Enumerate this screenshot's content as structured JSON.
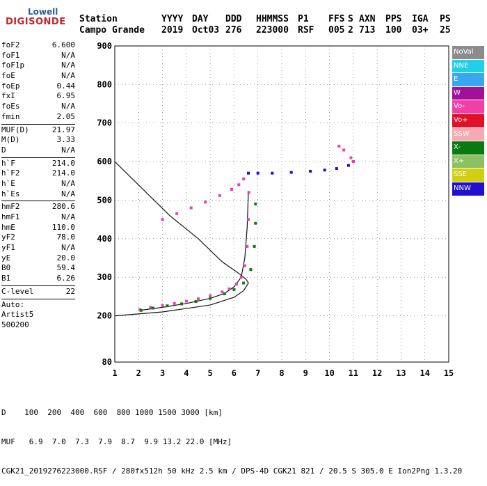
{
  "logo": {
    "top": "Lowell",
    "main": "DIGISONDE"
  },
  "header": {
    "row1": [
      "Station",
      "YYYY",
      "DAY",
      "DDD",
      "HHMMSS",
      "P1",
      "FFS",
      "S",
      "AXN",
      "PPS",
      "IGA",
      "PS"
    ],
    "row2": [
      "Campo Grande",
      "2019",
      "Oct03",
      "276",
      "223000",
      "RSF",
      "005",
      "2",
      "713",
      "100",
      "03+",
      "25"
    ]
  },
  "side_groups": [
    [
      [
        "foF2",
        "6.600"
      ],
      [
        "foF1",
        "N/A"
      ],
      [
        "foF1p",
        "N/A"
      ],
      [
        "foE",
        "N/A"
      ],
      [
        "foEp",
        "0.44"
      ],
      [
        "fxI",
        "6.95"
      ],
      [
        "foEs",
        "N/A"
      ],
      [
        "fmin",
        "2.05"
      ]
    ],
    [
      [
        "MUF(D)",
        "21.97"
      ],
      [
        "M(D)",
        "3.33"
      ],
      [
        "D",
        "N/A"
      ]
    ],
    [
      [
        "h`F",
        "214.0"
      ],
      [
        "h`F2",
        "214.0"
      ],
      [
        "h`E",
        "N/A"
      ],
      [
        "h`Es",
        "N/A"
      ]
    ],
    [
      [
        "hmF2",
        "280.6"
      ],
      [
        "hmF1",
        "N/A"
      ],
      [
        "hmE",
        "110.0"
      ],
      [
        "yF2",
        "78.0"
      ],
      [
        "yF1",
        "N/A"
      ],
      [
        "yE",
        "20.0"
      ],
      [
        "B0",
        "59.4"
      ],
      [
        "B1",
        "6.26"
      ]
    ],
    [
      [
        "C-level",
        "22"
      ]
    ],
    [
      [
        "Auto:",
        ""
      ],
      [
        "Artist5",
        ""
      ],
      [
        "500200",
        ""
      ]
    ]
  ],
  "bottom": {
    "line1": "D    100  200  400  600  800 1000 1500 3000 [km]",
    "line2": "MUF   6.9  7.0  7.3  7.9  8.7  9.9 13.2 22.0 [MHz]",
    "line3": "CGK21_2019276223000.RSF / 280fx512h 50 kHz 2.5 km / DPS-4D CGK21 821 / 20.5 S 305.0 E Ion2Png 1.3.20"
  },
  "legend": [
    {
      "label": "NoVal",
      "color": "#8c8c8c"
    },
    {
      "label": "NNE",
      "color": "#20d0e8"
    },
    {
      "label": "E",
      "color": "#3aa6f0"
    },
    {
      "label": "W",
      "color": "#a0109a"
    },
    {
      "label": "Vo-",
      "color": "#f040a8"
    },
    {
      "label": "Vo+",
      "color": "#e0102a"
    },
    {
      "label": "SSW",
      "color": "#f4aab0"
    },
    {
      "label": "X-",
      "color": "#0a7a10"
    },
    {
      "label": "X+",
      "color": "#8cc060"
    },
    {
      "label": "SSE",
      "color": "#d0d010"
    },
    {
      "label": "NNW",
      "color": "#2010d0"
    }
  ],
  "chart_data": {
    "type": "scatter",
    "xlabel": "",
    "ylabel": "",
    "xlim": [
      1,
      15
    ],
    "ylim": [
      80,
      900
    ],
    "xticks": [
      1,
      2,
      3,
      4,
      5,
      6,
      7,
      8,
      9,
      10,
      11,
      12,
      13,
      14,
      15
    ],
    "yticks": [
      80,
      200,
      300,
      400,
      500,
      600,
      700,
      800,
      900
    ],
    "series": [
      {
        "color": "#f040a8",
        "values": [
          [
            2.05,
            216
          ],
          [
            2.5,
            222
          ],
          [
            3,
            227
          ],
          [
            3.5,
            232
          ],
          [
            4,
            238
          ],
          [
            4.5,
            244
          ],
          [
            5,
            252
          ],
          [
            5.5,
            262
          ],
          [
            5.8,
            270
          ],
          [
            6.1,
            282
          ],
          [
            6.3,
            300
          ],
          [
            6.45,
            330
          ],
          [
            6.55,
            380
          ],
          [
            6.6,
            450
          ],
          [
            6.62,
            520
          ]
        ]
      },
      {
        "color": "#0a7a10",
        "values": [
          [
            2.1,
            214
          ],
          [
            2.6,
            220
          ],
          [
            3.2,
            226
          ],
          [
            3.8,
            231
          ],
          [
            4.4,
            237
          ],
          [
            5,
            245
          ],
          [
            5.6,
            257
          ],
          [
            6.0,
            268
          ],
          [
            6.4,
            285
          ],
          [
            6.7,
            320
          ],
          [
            6.85,
            380
          ],
          [
            6.9,
            440
          ],
          [
            6.9,
            490
          ]
        ]
      },
      {
        "color": "#f040a8",
        "values": [
          [
            3,
            450
          ],
          [
            3.6,
            465
          ],
          [
            4.2,
            480
          ],
          [
            4.8,
            495
          ],
          [
            5.4,
            512
          ],
          [
            5.9,
            528
          ],
          [
            6.2,
            540
          ],
          [
            6.4,
            555
          ]
        ]
      },
      {
        "color": "#2010d0",
        "values": [
          [
            6.6,
            570
          ],
          [
            7,
            570
          ],
          [
            7.6,
            570
          ],
          [
            8.4,
            572
          ],
          [
            9.2,
            575
          ],
          [
            9.8,
            578
          ],
          [
            10.3,
            582
          ],
          [
            10.8,
            590
          ],
          [
            11,
            600
          ]
        ]
      },
      {
        "color": "#f040a8",
        "values": [
          [
            10.4,
            640
          ],
          [
            10.6,
            630
          ],
          [
            10.9,
            610
          ],
          [
            11,
            600
          ]
        ]
      }
    ],
    "curves": [
      {
        "style": "solid",
        "values": [
          [
            1,
            200
          ],
          [
            3,
            210
          ],
          [
            5,
            228
          ],
          [
            6,
            248
          ],
          [
            6.4,
            265
          ],
          [
            6.6,
            285
          ],
          [
            6.5,
            295
          ],
          [
            6.2,
            310
          ],
          [
            5.5,
            340
          ],
          [
            4.5,
            400
          ],
          [
            3.3,
            460
          ],
          [
            1,
            600
          ]
        ]
      },
      {
        "style": "dashed",
        "values": [
          [
            1,
            600
          ],
          [
            3.3,
            460
          ],
          [
            4.5,
            400
          ],
          [
            5.5,
            340
          ],
          [
            6.2,
            310
          ],
          [
            6.5,
            295
          ]
        ]
      },
      {
        "style": "solid",
        "values": [
          [
            2.05,
            214
          ],
          [
            3,
            222
          ],
          [
            4,
            232
          ],
          [
            5,
            245
          ],
          [
            5.6,
            258
          ],
          [
            6,
            275
          ],
          [
            6.3,
            300
          ],
          [
            6.45,
            350
          ],
          [
            6.55,
            430
          ],
          [
            6.6,
            520
          ]
        ]
      }
    ]
  }
}
